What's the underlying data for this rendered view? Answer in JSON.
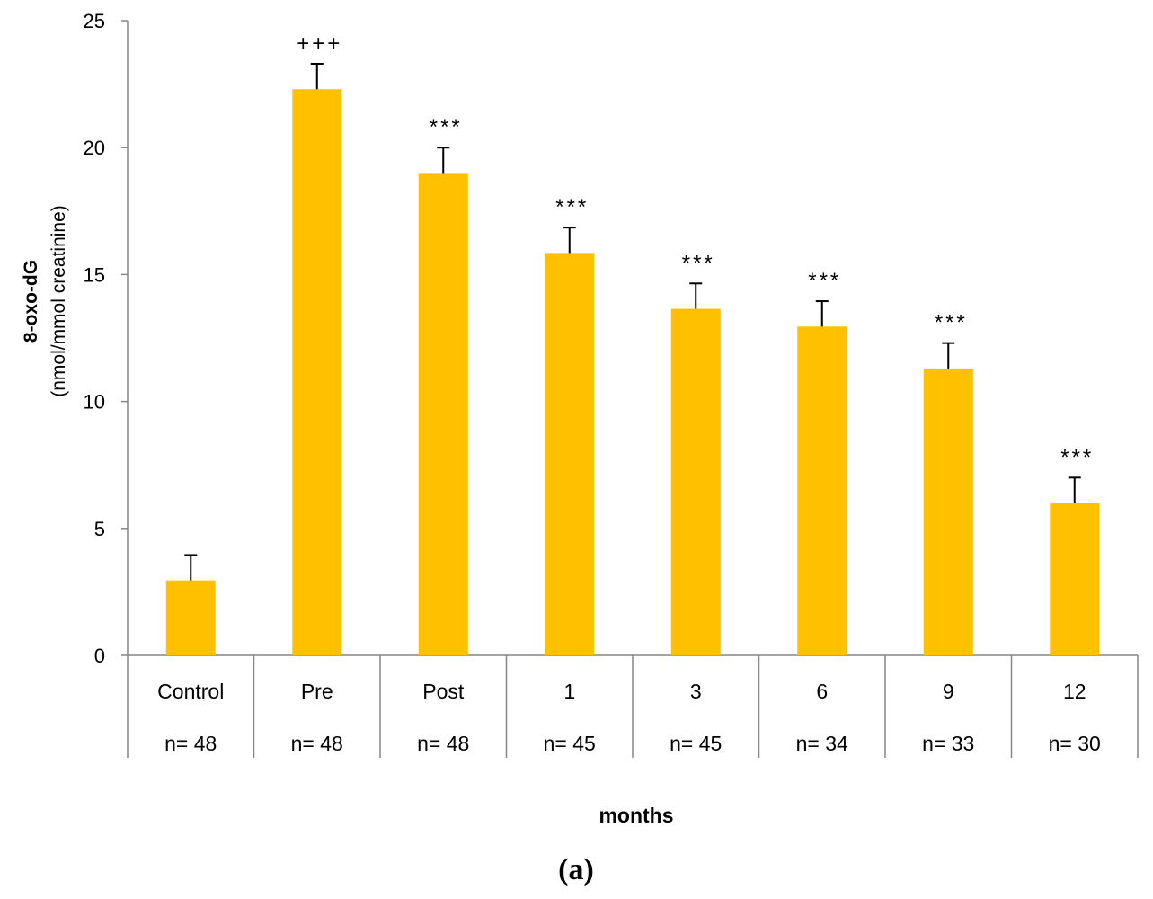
{
  "chart_data": {
    "type": "bar",
    "categories": [
      "Control",
      "Pre",
      "Post",
      "1",
      "3",
      "6",
      "9",
      "12"
    ],
    "sample_sizes": [
      "n= 48",
      "n= 48",
      "n= 48",
      "n= 45",
      "n= 45",
      "n= 34",
      "n= 33",
      "n= 30"
    ],
    "values": [
      2.95,
      22.3,
      19.0,
      15.85,
      13.65,
      12.95,
      11.3,
      6.0
    ],
    "error_upper": [
      3.95,
      23.3,
      20.0,
      16.85,
      14.65,
      13.95,
      12.3,
      7.0
    ],
    "significance": [
      "",
      "+++",
      "***",
      "***",
      "***",
      "***",
      "***",
      "***"
    ],
    "ylabel": "8-oxo-dG",
    "ylabel_unit": "(nmol/mmol creatinine)",
    "xlabel": "months",
    "panel_label": "(a)",
    "ylim": [
      0,
      25
    ],
    "yticks": [
      0,
      5,
      10,
      15,
      20,
      25
    ],
    "grid": false,
    "bar_color": "#FFC000",
    "axis_color": "#868686",
    "error_bar_color": "#000000"
  }
}
